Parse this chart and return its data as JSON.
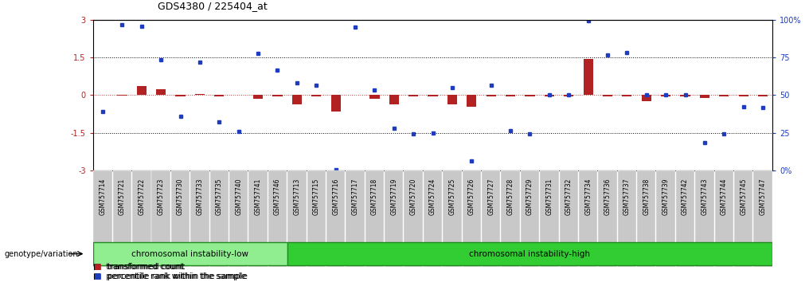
{
  "title": "GDS4380 / 225404_at",
  "samples": [
    "GSM757714",
    "GSM757721",
    "GSM757722",
    "GSM757723",
    "GSM757730",
    "GSM757733",
    "GSM757735",
    "GSM757740",
    "GSM757741",
    "GSM757746",
    "GSM757713",
    "GSM757715",
    "GSM757716",
    "GSM757717",
    "GSM757718",
    "GSM757719",
    "GSM757720",
    "GSM757724",
    "GSM757725",
    "GSM757726",
    "GSM757727",
    "GSM757728",
    "GSM757729",
    "GSM757731",
    "GSM757732",
    "GSM757734",
    "GSM757736",
    "GSM757737",
    "GSM757738",
    "GSM757739",
    "GSM757742",
    "GSM757743",
    "GSM757744",
    "GSM757745",
    "GSM757747"
  ],
  "red_values": [
    0.02,
    -0.02,
    0.35,
    0.25,
    -0.05,
    0.05,
    -0.05,
    0.02,
    -0.15,
    -0.05,
    -0.35,
    -0.05,
    -0.65,
    0.02,
    -0.15,
    -0.35,
    -0.05,
    -0.05,
    -0.35,
    -0.45,
    -0.05,
    -0.05,
    -0.05,
    -0.05,
    -0.05,
    1.45,
    -0.05,
    -0.05,
    -0.25,
    -0.05,
    -0.05,
    -0.1,
    -0.05,
    -0.05,
    -0.05
  ],
  "blue_values": [
    -0.65,
    2.8,
    2.75,
    1.4,
    -0.85,
    1.3,
    -1.05,
    -1.45,
    1.65,
    1.0,
    0.5,
    0.4,
    -2.95,
    2.7,
    0.2,
    -1.3,
    -1.55,
    -1.5,
    0.3,
    -2.6,
    0.4,
    -1.4,
    -1.55,
    0.0,
    0.0,
    2.95,
    1.6,
    1.7,
    0.0,
    0.0,
    0.0,
    -1.9,
    -1.55,
    -0.45,
    -0.5
  ],
  "group_low_count": 10,
  "group_high_count": 25,
  "group_low_label": "chromosomal instability-low",
  "group_high_label": "chromosomal instability-high",
  "genotype_label": "genotype/variation",
  "ylim": [
    -3,
    3
  ],
  "yticks_left": [
    -3,
    -1.5,
    0,
    1.5,
    3
  ],
  "ytick_left_labels": [
    "-3",
    "-1.5",
    "0",
    "1.5",
    "3"
  ],
  "yticks_right_pct": [
    0,
    25,
    50,
    75,
    100
  ],
  "ytick_right_labels": [
    "0%",
    "25",
    "50",
    "75",
    "100%"
  ],
  "red_color": "#b22222",
  "blue_color": "#1e3cbe",
  "group_low_color": "#90ee90",
  "group_high_color": "#32cd32",
  "legend_red": "transformed count",
  "legend_blue": "percentile rank within the sample",
  "bar_width": 0.5
}
